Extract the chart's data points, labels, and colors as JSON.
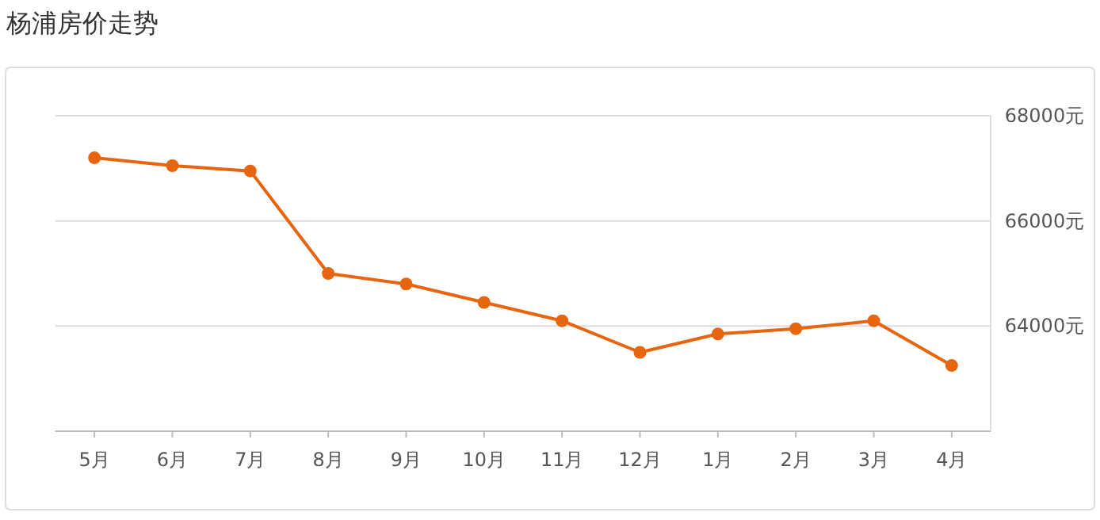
{
  "chart_data": {
    "type": "line",
    "title": "杨浦房价走势",
    "categories": [
      "5月",
      "6月",
      "7月",
      "8月",
      "9月",
      "10月",
      "11月",
      "12月",
      "1月",
      "2月",
      "3月",
      "4月"
    ],
    "series": [
      {
        "color": "#e8650f",
        "values": [
          67200,
          67050,
          66950,
          65000,
          64800,
          64450,
          64100,
          63500,
          63850,
          63950,
          64100,
          63250
        ]
      }
    ],
    "ylim": [
      62000,
      68000
    ],
    "yticks": [
      {
        "value": 64000,
        "label": "64000元"
      },
      {
        "value": 66000,
        "label": "66000元"
      },
      {
        "value": 68000,
        "label": "68000元"
      }
    ],
    "grid": "y",
    "marker": "circle"
  }
}
